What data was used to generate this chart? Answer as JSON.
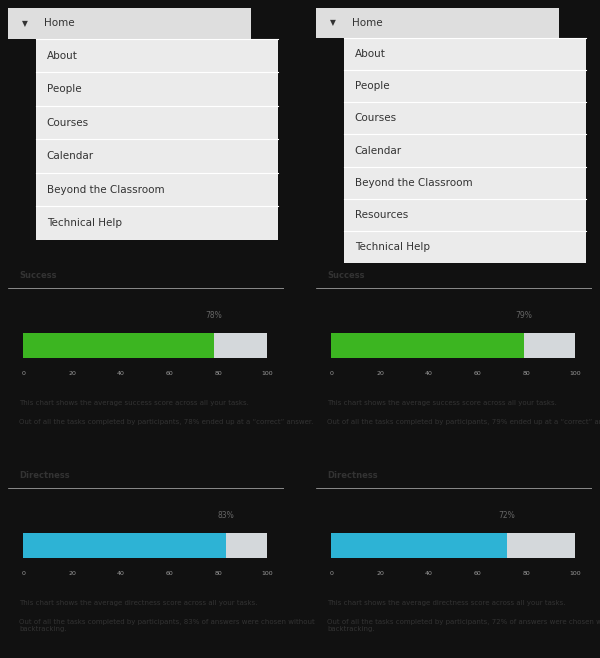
{
  "tree1_items": [
    "Home",
    "About",
    "People",
    "Courses",
    "Calendar",
    "Beyond the Classroom",
    "Technical Help"
  ],
  "tree2_items": [
    "Home",
    "About",
    "People",
    "Courses",
    "Calendar",
    "Beyond the Classroom",
    "Resources",
    "Technical Help"
  ],
  "success1": 78,
  "success2": 79,
  "directness1": 83,
  "directness2": 72,
  "success_label": "Success",
  "directness_label": "Directness",
  "green_color": "#3cb521",
  "blue_color": "#2db3d5",
  "gray_color": "#d4d8db",
  "home_bg": "#dedede",
  "item_bg": "#ebebeb",
  "panel_bg": "#ffffff",
  "outer_bg": "#111111",
  "border_color": "#bbbbbb",
  "text_color": "#333333",
  "axis_color": "#999999",
  "success_text": "This chart shows the average success score across all your tasks.",
  "success_text2_pre": "Out of all the tasks completed by participants, ",
  "success_text2_post1": "% ended up at a “correct” answer.",
  "directness_text": "This chart shows the average directness score across all your tasks.",
  "directness_text2_pre": "Out of all the tasks completed by participants, ",
  "directness_text2_post": "% of answers were chosen without\nbacktracking."
}
